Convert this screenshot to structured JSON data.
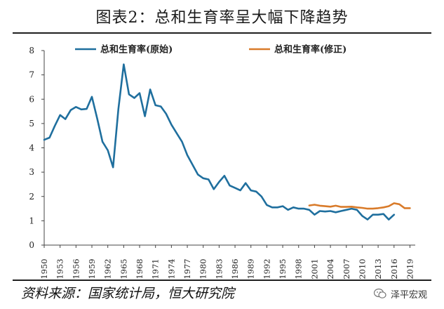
{
  "title": "图表2：总和生育率呈大幅下降趋势",
  "source": "资料来源：国家统计局，恒大研究院",
  "watermark": "泽平宏观",
  "chart_data": {
    "type": "line",
    "ylim": [
      0,
      8
    ],
    "yticks": [
      "0",
      "1",
      "2",
      "3",
      "4",
      "5",
      "6",
      "7",
      "8"
    ],
    "xlim": [
      1950,
      2020
    ],
    "xticks": [
      "1950",
      "1953",
      "1956",
      "1959",
      "1962",
      "1965",
      "1968",
      "1971",
      "1974",
      "1977",
      "1980",
      "1983",
      "1986",
      "1989",
      "1992",
      "1995",
      "1998",
      "2001",
      "2004",
      "2007",
      "2010",
      "2013",
      "2016",
      "2019"
    ],
    "grid": false,
    "legend_position": "top",
    "series": [
      {
        "name": "总和生育率(原始)",
        "color": "#1f6f9e",
        "points": [
          [
            1950,
            4.33
          ],
          [
            1951,
            4.42
          ],
          [
            1952,
            4.9
          ],
          [
            1953,
            5.35
          ],
          [
            1954,
            5.18
          ],
          [
            1955,
            5.55
          ],
          [
            1956,
            5.68
          ],
          [
            1957,
            5.58
          ],
          [
            1958,
            5.6
          ],
          [
            1959,
            6.1
          ],
          [
            1960,
            5.2
          ],
          [
            1961,
            4.25
          ],
          [
            1962,
            3.9
          ],
          [
            1963,
            3.2
          ],
          [
            1964,
            5.6
          ],
          [
            1965,
            7.43
          ],
          [
            1966,
            6.2
          ],
          [
            1967,
            6.05
          ],
          [
            1968,
            6.25
          ],
          [
            1969,
            5.3
          ],
          [
            1970,
            6.4
          ],
          [
            1971,
            5.75
          ],
          [
            1972,
            5.7
          ],
          [
            1973,
            5.4
          ],
          [
            1974,
            4.95
          ],
          [
            1975,
            4.6
          ],
          [
            1976,
            4.25
          ],
          [
            1977,
            3.7
          ],
          [
            1978,
            3.3
          ],
          [
            1979,
            2.9
          ],
          [
            1980,
            2.75
          ],
          [
            1981,
            2.7
          ],
          [
            1982,
            2.3
          ],
          [
            1983,
            2.6
          ],
          [
            1984,
            2.85
          ],
          [
            1985,
            2.45
          ],
          [
            1986,
            2.35
          ],
          [
            1987,
            2.25
          ],
          [
            1988,
            2.55
          ],
          [
            1989,
            2.25
          ],
          [
            1990,
            2.2
          ],
          [
            1991,
            2.0
          ],
          [
            1992,
            1.65
          ],
          [
            1993,
            1.55
          ],
          [
            1994,
            1.55
          ],
          [
            1995,
            1.6
          ],
          [
            1996,
            1.45
          ],
          [
            1997,
            1.55
          ],
          [
            1998,
            1.5
          ],
          [
            1999,
            1.5
          ],
          [
            2000,
            1.45
          ],
          [
            2001,
            1.25
          ],
          [
            2002,
            1.4
          ],
          [
            2003,
            1.38
          ],
          [
            2004,
            1.4
          ],
          [
            2005,
            1.35
          ],
          [
            2006,
            1.4
          ],
          [
            2007,
            1.45
          ],
          [
            2008,
            1.5
          ],
          [
            2009,
            1.45
          ],
          [
            2010,
            1.2
          ],
          [
            2011,
            1.05
          ],
          [
            2012,
            1.25
          ],
          [
            2013,
            1.25
          ],
          [
            2014,
            1.28
          ],
          [
            2015,
            1.05
          ],
          [
            2016,
            1.25
          ]
        ]
      },
      {
        "name": "总和生育率(修正)",
        "color": "#d97b2a",
        "points": [
          [
            2000,
            1.63
          ],
          [
            2001,
            1.66
          ],
          [
            2002,
            1.62
          ],
          [
            2003,
            1.6
          ],
          [
            2004,
            1.58
          ],
          [
            2005,
            1.62
          ],
          [
            2006,
            1.57
          ],
          [
            2007,
            1.57
          ],
          [
            2008,
            1.58
          ],
          [
            2009,
            1.55
          ],
          [
            2010,
            1.53
          ],
          [
            2011,
            1.5
          ],
          [
            2012,
            1.5
          ],
          [
            2013,
            1.52
          ],
          [
            2014,
            1.55
          ],
          [
            2015,
            1.6
          ],
          [
            2016,
            1.72
          ],
          [
            2017,
            1.68
          ],
          [
            2018,
            1.52
          ],
          [
            2019,
            1.52
          ]
        ]
      }
    ]
  }
}
